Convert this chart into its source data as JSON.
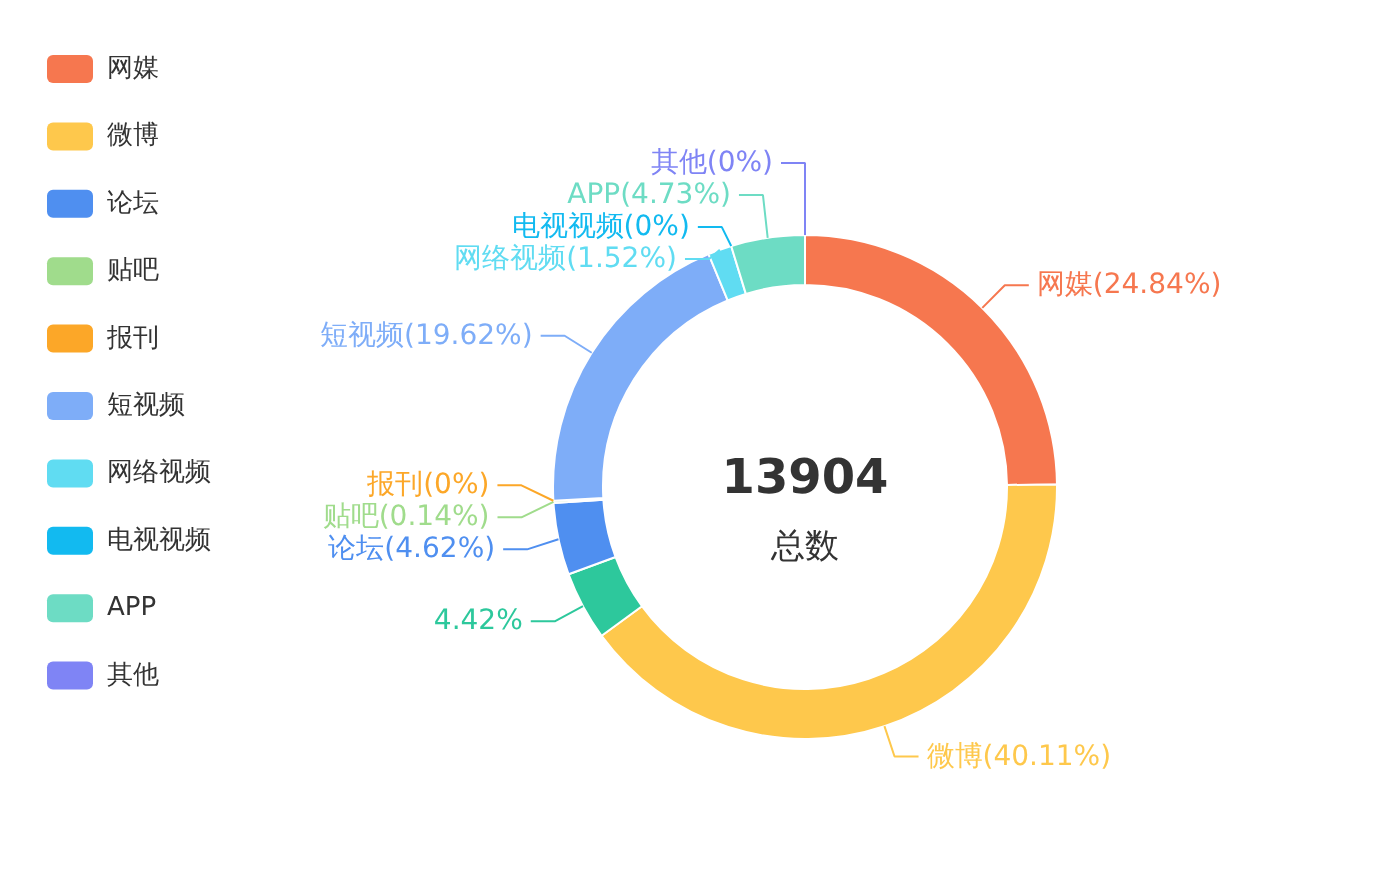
{
  "chart_data": {
    "type": "donut",
    "categories": [
      "网媒",
      "微博",
      null,
      "论坛",
      "贴吧",
      "报刊",
      "短视频",
      "网络视频",
      "电视视频",
      "APP",
      "其他"
    ],
    "values": [
      24.84,
      40.11,
      4.42,
      4.62,
      0.14,
      0,
      19.62,
      1.52,
      0,
      4.73,
      0
    ],
    "value_labels": [
      "网媒(24.84%)",
      "微博(40.11%)",
      "4.42%",
      "论坛(4.62%)",
      "贴吧(0.14%)",
      "报刊(0%)",
      "短视频(19.62%)",
      "网络视频(1.52%)",
      "电视视频(0%)",
      "APP(4.73%)",
      "其他(0%)"
    ],
    "colors": [
      "#f6774f",
      "#fec84c",
      "#2dc89c",
      "#4f8ff0",
      "#a0dc8c",
      "#fca728",
      "#7eadf8",
      "#60dcf2",
      "#12baf0",
      "#6ddcc4",
      "#7f84f5"
    ],
    "annotations": [
      "13904",
      "总数"
    ],
    "legend": "top left"
  }
}
